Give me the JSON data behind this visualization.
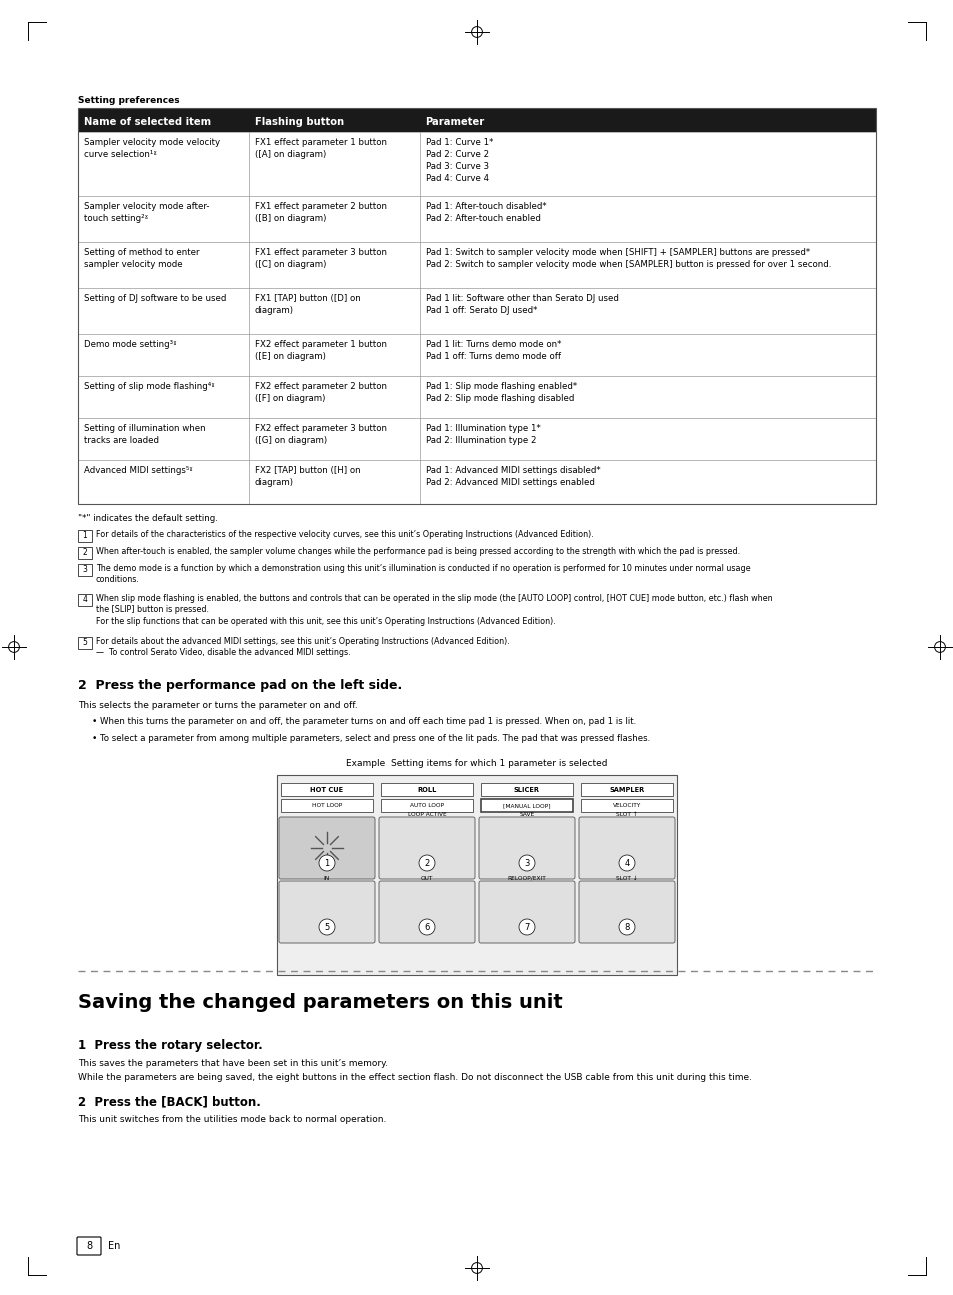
{
  "page_bg": "#ffffff",
  "page_width": 9.54,
  "page_height": 12.95,
  "dpi": 100,
  "section_title": "Setting preferences",
  "table_header": [
    "Name of selected item",
    "Flashing button",
    "Parameter"
  ],
  "table_header_bg": "#1a1a1a",
  "table_header_color": "#ffffff",
  "table_border_color": "#555555",
  "table_line_color": "#999999",
  "table_rows": [
    {
      "col1": "Sampler velocity mode velocity\ncurve selection¹ˠ",
      "col2": "FX1 effect parameter 1 button\n([A] on diagram)",
      "col3": "Pad 1: Curve 1*\nPad 2: Curve 2\nPad 3: Curve 3\nPad 4: Curve 4"
    },
    {
      "col1": "Sampler velocity mode after-\ntouch setting²ˠ",
      "col2": "FX1 effect parameter 2 button\n([B] on diagram)",
      "col3": "Pad 1: After-touch disabled*\nPad 2: After-touch enabled"
    },
    {
      "col1": "Setting of method to enter\nsampler velocity mode",
      "col2": "FX1 effect parameter 3 button\n([C] on diagram)",
      "col3": "Pad 1: Switch to sampler velocity mode when [SHIFT] + [SAMPLER] buttons are pressed*\nPad 2: Switch to sampler velocity mode when [SAMPLER] button is pressed for over 1 second."
    },
    {
      "col1": "Setting of DJ software to be used",
      "col2": "FX1 [TAP] button ([D] on\ndiagram)",
      "col3": "Pad 1 lit: Software other than Serato DJ used\nPad 1 off: Serato DJ used*"
    },
    {
      "col1": "Demo mode setting³ˠ",
      "col2": "FX2 effect parameter 1 button\n([E] on diagram)",
      "col3": "Pad 1 lit: Turns demo mode on*\nPad 1 off: Turns demo mode off"
    },
    {
      "col1": "Setting of slip mode flashing⁴ˠ",
      "col2": "FX2 effect parameter 2 button\n([F] on diagram)",
      "col3": "Pad 1: Slip mode flashing enabled*\nPad 2: Slip mode flashing disabled"
    },
    {
      "col1": "Setting of illumination when\ntracks are loaded",
      "col2": "FX2 effect parameter 3 button\n([G] on diagram)",
      "col3": "Pad 1: Illumination type 1*\nPad 2: Illumination type 2"
    },
    {
      "col1": "Advanced MIDI settings⁵ˠ",
      "col2": "FX2 [TAP] button ([H] on\ndiagram)",
      "col3": "Pad 1: Advanced MIDI settings disabled*\nPad 2: Advanced MIDI settings enabled"
    }
  ],
  "footnote_star": "\"*\" indicates the default setting.",
  "section2_heading": "2  Press the performance pad on the left side.",
  "section2_body1": "This selects the parameter or turns the parameter on and off.",
  "section2_bullets": [
    "When this turns the parameter on and off, the parameter turns on and off each time pad 1 is pressed. When on, pad 1 is lit.",
    "To select a parameter from among multiple parameters, select and press one of the lit pads. The pad that was pressed flashes."
  ],
  "example_label": "Example  Setting items for which 1 parameter is selected",
  "pad_buttons_top": [
    "HOT CUE",
    "ROLL",
    "SLICER",
    "SAMPLER"
  ],
  "pad_buttons_mid": [
    "HOT LOOP",
    "AUTO LOOP",
    "[MANUAL LOOP]",
    "VELOCITY"
  ],
  "pad_labels_row1": [
    "",
    "LOOP ACTIVE",
    "SAVE",
    "SLOT ↑"
  ],
  "pad_labels_row2": [
    "IN",
    "OUT",
    "RELOOP/EXIT",
    "SLOT ↓"
  ],
  "pad_numbers_row1": [
    "1",
    "2",
    "3",
    "4"
  ],
  "pad_numbers_row2": [
    "5",
    "6",
    "7",
    "8"
  ],
  "dashed_line_color": "#888888",
  "saving_title": "Saving the changed parameters on this unit",
  "step1_heading": "1  Press the rotary selector.",
  "step1_body1": "This saves the parameters that have been set in this unit’s memory.",
  "step1_body2": "While the parameters are being saved, the eight buttons in the effect section flash. Do not disconnect the USB cable from this unit during this time.",
  "step2_heading": "2  Press the [BACK] button.",
  "step2_body": "This unit switches from the utilities mode back to normal operation.",
  "page_number": "8",
  "page_lang": "En"
}
